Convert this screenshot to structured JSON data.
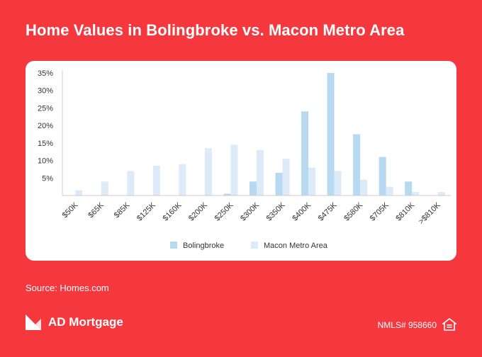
{
  "header": {
    "title": "Home Values in Bolingbroke vs. Macon Metro Area"
  },
  "footer": {
    "source": "Source: Homes.com",
    "brand": "AD Mortgage",
    "nmls": "NMLS# 958660"
  },
  "icons": {
    "logo": "ad-mortgage-logo-icon",
    "equal_housing": "equal-housing-lender-icon"
  },
  "colors": {
    "background": "#F5383E",
    "bolingbroke": "#B7D9F1",
    "macon": "#DDEBF8"
  },
  "chart_data": {
    "type": "bar",
    "title": "Home Values in Bolingbroke vs. Macon Metro Area",
    "xlabel": "",
    "ylabel": "",
    "categories": [
      "$50K",
      "$65K",
      "$85K",
      "$125K",
      "$160K",
      "$200K",
      "$250K",
      "$300K",
      "$350K",
      "$400K",
      "$475K",
      "$580K",
      "$705K",
      "$810K",
      ">$810K"
    ],
    "series": [
      {
        "name": "Bolingbroke",
        "color": "#B7D9F1",
        "values": [
          0,
          0,
          0,
          0,
          0,
          0,
          0.5,
          4,
          6.5,
          24,
          35,
          17.5,
          11,
          4,
          0
        ]
      },
      {
        "name": "Macon Metro Area",
        "color": "#DDEBF8",
        "values": [
          1.5,
          4,
          7,
          8.5,
          9,
          13.5,
          14.5,
          13,
          10.5,
          8,
          7,
          4.5,
          2.5,
          1,
          1
        ]
      }
    ],
    "yticks": [
      "5%",
      "10%",
      "15%",
      "20%",
      "25%",
      "30%",
      "35%"
    ],
    "ylim": [
      0,
      35
    ],
    "grid": false,
    "legend_position": "bottom-center"
  }
}
